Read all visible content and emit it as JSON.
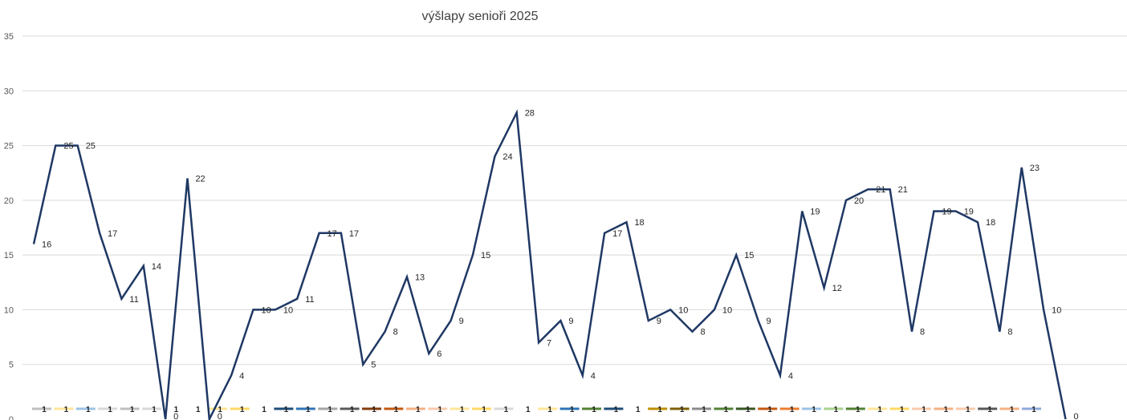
{
  "chart_data": {
    "type": "line",
    "title": "výšlapy senioři 2025",
    "xlabel": "",
    "ylabel": "",
    "ylim": [
      0,
      35
    ],
    "y_ticks": [
      0,
      5,
      10,
      15,
      20,
      25,
      30,
      35
    ],
    "grid": true,
    "series": [
      {
        "values": [
          16,
          25,
          25,
          17,
          11,
          14,
          0,
          22,
          0,
          4,
          10,
          10,
          11,
          17,
          17,
          5,
          8,
          13,
          6,
          9,
          15,
          24,
          28,
          7,
          9,
          4,
          17,
          18,
          9,
          10,
          8,
          10,
          15,
          9,
          4,
          19,
          12,
          20,
          21,
          21,
          8,
          19,
          19,
          18,
          8,
          23,
          10,
          0
        ]
      }
    ],
    "legend": {
      "placement": "bottom",
      "entries": [
        "1",
        "1",
        "1",
        "1",
        "1",
        "1",
        "1",
        "1",
        "1",
        "1",
        "1",
        "1",
        "1",
        "1",
        "1",
        "1",
        "1",
        "1",
        "1",
        "1",
        "1",
        "1",
        "1",
        "1",
        "1",
        "1",
        "1",
        "1",
        "1",
        "1",
        "1",
        "1",
        "1",
        "1",
        "1",
        "1",
        "1",
        "1",
        "1",
        "1",
        "1",
        "1",
        "1",
        "1",
        "1",
        "1"
      ],
      "colors": [
        "#bfbfbf",
        "#ffe699",
        "#9dc3e6",
        "#d9d9d9",
        "#bfbfbf",
        "#d9d9d9",
        "#ffffff",
        "#ffffff",
        "#ffe699",
        "#ffd966",
        "#ffffff",
        "#1f4e79",
        "#2e75b6",
        "#a6a6a6",
        "#595959",
        "#843c0c",
        "#c55a11",
        "#f4b183",
        "#f8cbad",
        "#ffe699",
        "#ffd966",
        "#d9d9d9",
        "#ffffff",
        "#ffe699",
        "#2e75b6",
        "#548235",
        "#1f4e79",
        "#ffffff",
        "#bf9000",
        "#7f6000",
        "#8c8c8c",
        "#548235",
        "#385723",
        "#c55a11",
        "#ed7d31",
        "#9dc3e6",
        "#a9d18e",
        "#548235",
        "#ffe699",
        "#ffd966",
        "#f8cbad",
        "#f4b183",
        "#f8cbad",
        "#595959",
        "#f4b183",
        "#8faadc"
      ]
    },
    "line_color": "#1f3864"
  }
}
